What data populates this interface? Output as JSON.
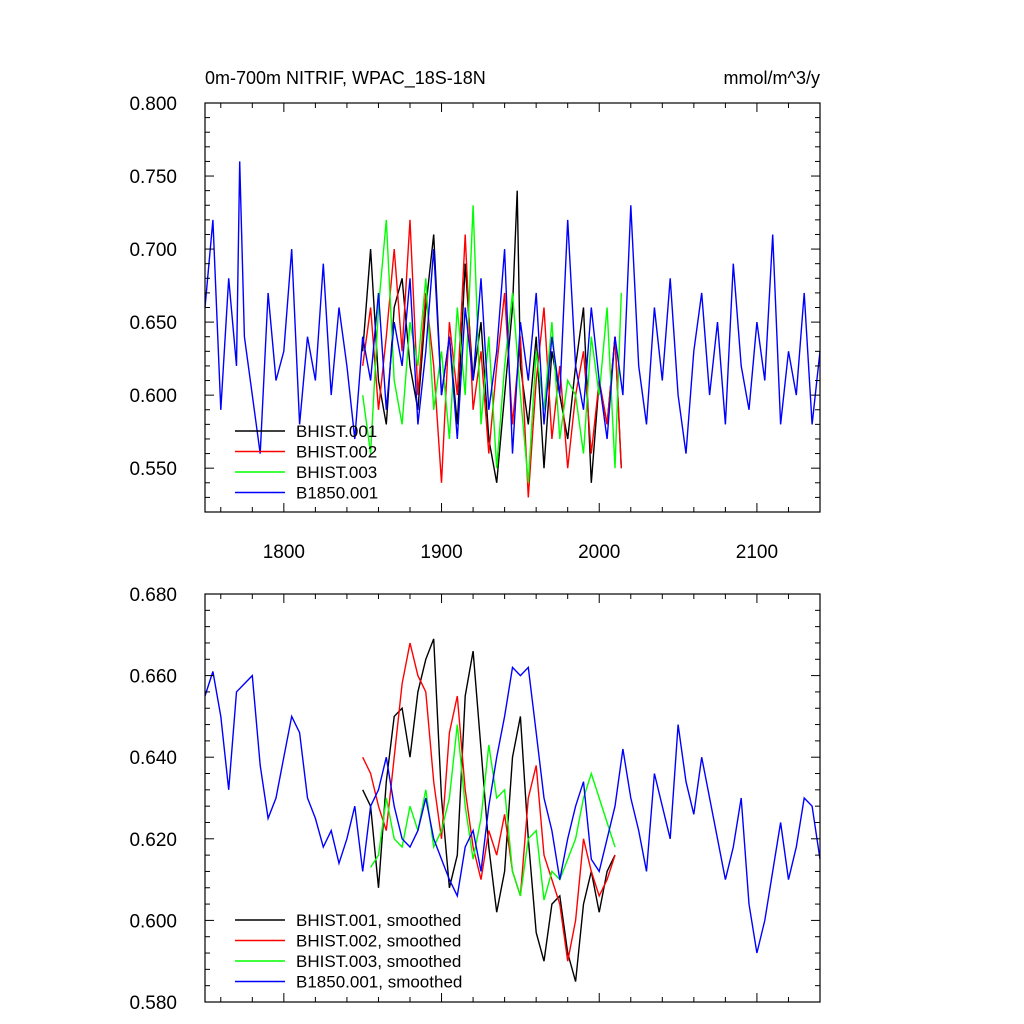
{
  "chart_data": [
    {
      "type": "line",
      "title": "0m-700m NITRIF, WPAC_18S-18N",
      "units": "mmol/m^3/y",
      "xlim": [
        1750,
        2140
      ],
      "ylim": [
        0.52,
        0.8
      ],
      "xticks": [
        1800,
        1900,
        2000,
        2100
      ],
      "xtick_labels": [
        "1800",
        "1900",
        "2000",
        "2100"
      ],
      "yticks": [
        0.55,
        0.6,
        0.65,
        0.7,
        0.75,
        0.8
      ],
      "ytick_labels": [
        "0.550",
        "0.600",
        "0.650",
        "0.700",
        "0.750",
        "0.800"
      ],
      "legend_position": "lower-left",
      "series": [
        {
          "name": "BHIST.001",
          "color": "#000000",
          "x": [
            1850,
            1855,
            1860,
            1865,
            1870,
            1875,
            1880,
            1885,
            1890,
            1895,
            1900,
            1905,
            1910,
            1915,
            1920,
            1925,
            1930,
            1935,
            1940,
            1945,
            1948,
            1950,
            1955,
            1960,
            1965,
            1970,
            1975,
            1980,
            1985,
            1990,
            1995,
            2000,
            2005,
            2010,
            2014
          ],
          "y": [
            0.63,
            0.7,
            0.61,
            0.58,
            0.66,
            0.68,
            0.62,
            0.59,
            0.66,
            0.71,
            0.6,
            0.64,
            0.58,
            0.69,
            0.61,
            0.65,
            0.57,
            0.54,
            0.6,
            0.66,
            0.74,
            0.62,
            0.58,
            0.64,
            0.55,
            0.63,
            0.6,
            0.57,
            0.62,
            0.66,
            0.54,
            0.61,
            0.58,
            0.64,
            0.55
          ]
        },
        {
          "name": "BHIST.002",
          "color": "#ff0000",
          "x": [
            1850,
            1855,
            1860,
            1865,
            1870,
            1875,
            1880,
            1885,
            1890,
            1895,
            1900,
            1905,
            1910,
            1915,
            1920,
            1925,
            1930,
            1935,
            1940,
            1945,
            1950,
            1955,
            1960,
            1965,
            1970,
            1975,
            1980,
            1985,
            1990,
            1995,
            2000,
            2005,
            2010,
            2014
          ],
          "y": [
            0.62,
            0.66,
            0.59,
            0.64,
            0.7,
            0.63,
            0.72,
            0.6,
            0.67,
            0.62,
            0.54,
            0.65,
            0.6,
            0.71,
            0.59,
            0.63,
            0.56,
            0.62,
            0.67,
            0.58,
            0.64,
            0.53,
            0.61,
            0.66,
            0.57,
            0.62,
            0.55,
            0.6,
            0.63,
            0.56,
            0.61,
            0.58,
            0.64,
            0.55
          ]
        },
        {
          "name": "BHIST.003",
          "color": "#00ff00",
          "x": [
            1850,
            1855,
            1860,
            1865,
            1870,
            1875,
            1880,
            1885,
            1890,
            1895,
            1900,
            1905,
            1910,
            1915,
            1920,
            1925,
            1930,
            1935,
            1940,
            1945,
            1950,
            1955,
            1960,
            1965,
            1970,
            1975,
            1980,
            1985,
            1990,
            1995,
            2000,
            2005,
            2010,
            2014
          ],
          "y": [
            0.6,
            0.56,
            0.66,
            0.72,
            0.61,
            0.58,
            0.65,
            0.62,
            0.68,
            0.59,
            0.63,
            0.57,
            0.66,
            0.6,
            0.73,
            0.58,
            0.64,
            0.55,
            0.62,
            0.67,
            0.6,
            0.54,
            0.63,
            0.59,
            0.65,
            0.57,
            0.61,
            0.6,
            0.56,
            0.64,
            0.6,
            0.66,
            0.55,
            0.67
          ]
        },
        {
          "name": "B1850.001",
          "color": "#0000ff",
          "x": [
            1750,
            1755,
            1760,
            1765,
            1770,
            1772,
            1775,
            1780,
            1785,
            1790,
            1795,
            1800,
            1805,
            1810,
            1815,
            1820,
            1825,
            1830,
            1835,
            1840,
            1845,
            1850,
            1855,
            1860,
            1865,
            1870,
            1875,
            1880,
            1885,
            1890,
            1895,
            1900,
            1905,
            1910,
            1915,
            1920,
            1925,
            1930,
            1935,
            1940,
            1945,
            1950,
            1955,
            1960,
            1965,
            1970,
            1975,
            1980,
            1985,
            1990,
            1995,
            2000,
            2005,
            2010,
            2015,
            2020,
            2025,
            2030,
            2035,
            2040,
            2045,
            2050,
            2055,
            2060,
            2065,
            2070,
            2075,
            2080,
            2085,
            2090,
            2095,
            2100,
            2105,
            2110,
            2115,
            2120,
            2125,
            2130,
            2135,
            2140
          ],
          "y": [
            0.66,
            0.72,
            0.59,
            0.68,
            0.62,
            0.76,
            0.64,
            0.6,
            0.56,
            0.67,
            0.61,
            0.63,
            0.7,
            0.58,
            0.64,
            0.61,
            0.69,
            0.6,
            0.66,
            0.62,
            0.57,
            0.64,
            0.61,
            0.67,
            0.59,
            0.65,
            0.62,
            0.68,
            0.58,
            0.63,
            0.7,
            0.6,
            0.64,
            0.57,
            0.66,
            0.61,
            0.68,
            0.59,
            0.63,
            0.7,
            0.56,
            0.65,
            0.61,
            0.67,
            0.58,
            0.64,
            0.6,
            0.72,
            0.62,
            0.59,
            0.66,
            0.61,
            0.57,
            0.64,
            0.6,
            0.73,
            0.62,
            0.58,
            0.66,
            0.61,
            0.68,
            0.6,
            0.56,
            0.63,
            0.67,
            0.6,
            0.65,
            0.58,
            0.69,
            0.62,
            0.59,
            0.65,
            0.61,
            0.71,
            0.58,
            0.63,
            0.6,
            0.67,
            0.58,
            0.63
          ]
        }
      ]
    },
    {
      "type": "line",
      "xlim": [
        1750,
        2140
      ],
      "ylim": [
        0.58,
        0.68
      ],
      "xticks": [
        1800,
        1900,
        2000,
        2100
      ],
      "yticks": [
        0.58,
        0.6,
        0.62,
        0.64,
        0.66,
        0.68
      ],
      "ytick_labels": [
        "0.580",
        "0.600",
        "0.620",
        "0.640",
        "0.660",
        "0.680"
      ],
      "legend_position": "lower-left",
      "series": [
        {
          "name": "BHIST.001, smoothed",
          "color": "#000000",
          "x": [
            1850,
            1855,
            1860,
            1865,
            1870,
            1875,
            1880,
            1885,
            1890,
            1895,
            1900,
            1905,
            1910,
            1915,
            1920,
            1925,
            1930,
            1935,
            1940,
            1945,
            1950,
            1955,
            1960,
            1965,
            1970,
            1975,
            1980,
            1985,
            1990,
            1995,
            2000,
            2005,
            2010
          ],
          "y": [
            0.632,
            0.628,
            0.608,
            0.634,
            0.65,
            0.652,
            0.64,
            0.656,
            0.664,
            0.669,
            0.63,
            0.608,
            0.616,
            0.655,
            0.666,
            0.642,
            0.618,
            0.602,
            0.612,
            0.64,
            0.65,
            0.62,
            0.597,
            0.59,
            0.604,
            0.606,
            0.592,
            0.585,
            0.604,
            0.612,
            0.602,
            0.612,
            0.616
          ]
        },
        {
          "name": "BHIST.002, smoothed",
          "color": "#ff0000",
          "x": [
            1850,
            1855,
            1860,
            1865,
            1870,
            1875,
            1880,
            1885,
            1890,
            1895,
            1900,
            1905,
            1910,
            1915,
            1920,
            1925,
            1930,
            1935,
            1940,
            1945,
            1950,
            1955,
            1960,
            1965,
            1970,
            1975,
            1980,
            1985,
            1990,
            1995,
            2000,
            2005,
            2010
          ],
          "y": [
            0.64,
            0.636,
            0.628,
            0.622,
            0.64,
            0.658,
            0.668,
            0.66,
            0.656,
            0.634,
            0.62,
            0.646,
            0.655,
            0.632,
            0.618,
            0.61,
            0.622,
            0.616,
            0.626,
            0.612,
            0.606,
            0.63,
            0.638,
            0.616,
            0.61,
            0.604,
            0.59,
            0.6,
            0.62,
            0.612,
            0.606,
            0.61,
            0.616
          ]
        },
        {
          "name": "BHIST.003, smoothed",
          "color": "#00ff00",
          "x": [
            1855,
            1860,
            1865,
            1870,
            1875,
            1880,
            1885,
            1890,
            1895,
            1900,
            1905,
            1910,
            1915,
            1920,
            1925,
            1930,
            1935,
            1940,
            1945,
            1950,
            1955,
            1960,
            1965,
            1970,
            1975,
            1980,
            1985,
            1990,
            1995,
            2000,
            2005,
            2010
          ],
          "y": [
            0.613,
            0.616,
            0.63,
            0.62,
            0.618,
            0.628,
            0.622,
            0.632,
            0.618,
            0.622,
            0.63,
            0.648,
            0.628,
            0.615,
            0.625,
            0.643,
            0.63,
            0.632,
            0.612,
            0.606,
            0.62,
            0.622,
            0.605,
            0.612,
            0.61,
            0.615,
            0.62,
            0.63,
            0.636,
            0.63,
            0.624,
            0.618
          ]
        },
        {
          "name": "B1850.001, smoothed",
          "color": "#0000ff",
          "x": [
            1750,
            1755,
            1760,
            1765,
            1770,
            1775,
            1780,
            1785,
            1790,
            1795,
            1800,
            1805,
            1810,
            1815,
            1820,
            1825,
            1830,
            1835,
            1840,
            1845,
            1850,
            1855,
            1860,
            1865,
            1870,
            1875,
            1880,
            1885,
            1890,
            1895,
            1900,
            1905,
            1910,
            1915,
            1920,
            1925,
            1930,
            1935,
            1940,
            1945,
            1950,
            1955,
            1960,
            1965,
            1970,
            1975,
            1980,
            1985,
            1990,
            1995,
            2000,
            2005,
            2010,
            2015,
            2020,
            2025,
            2030,
            2035,
            2040,
            2045,
            2050,
            2055,
            2060,
            2065,
            2070,
            2075,
            2080,
            2085,
            2090,
            2095,
            2100,
            2105,
            2110,
            2115,
            2120,
            2125,
            2130,
            2135,
            2140
          ],
          "y": [
            0.655,
            0.661,
            0.65,
            0.632,
            0.656,
            0.658,
            0.66,
            0.638,
            0.625,
            0.63,
            0.64,
            0.65,
            0.646,
            0.63,
            0.625,
            0.618,
            0.622,
            0.614,
            0.62,
            0.628,
            0.612,
            0.628,
            0.632,
            0.64,
            0.628,
            0.62,
            0.618,
            0.622,
            0.63,
            0.62,
            0.615,
            0.61,
            0.606,
            0.618,
            0.622,
            0.612,
            0.628,
            0.64,
            0.65,
            0.662,
            0.66,
            0.662,
            0.646,
            0.63,
            0.622,
            0.61,
            0.62,
            0.628,
            0.634,
            0.615,
            0.612,
            0.62,
            0.628,
            0.642,
            0.63,
            0.622,
            0.612,
            0.636,
            0.628,
            0.62,
            0.648,
            0.634,
            0.626,
            0.64,
            0.63,
            0.62,
            0.61,
            0.618,
            0.63,
            0.604,
            0.592,
            0.6,
            0.612,
            0.624,
            0.61,
            0.618,
            0.63,
            0.628,
            0.615
          ]
        }
      ]
    }
  ]
}
